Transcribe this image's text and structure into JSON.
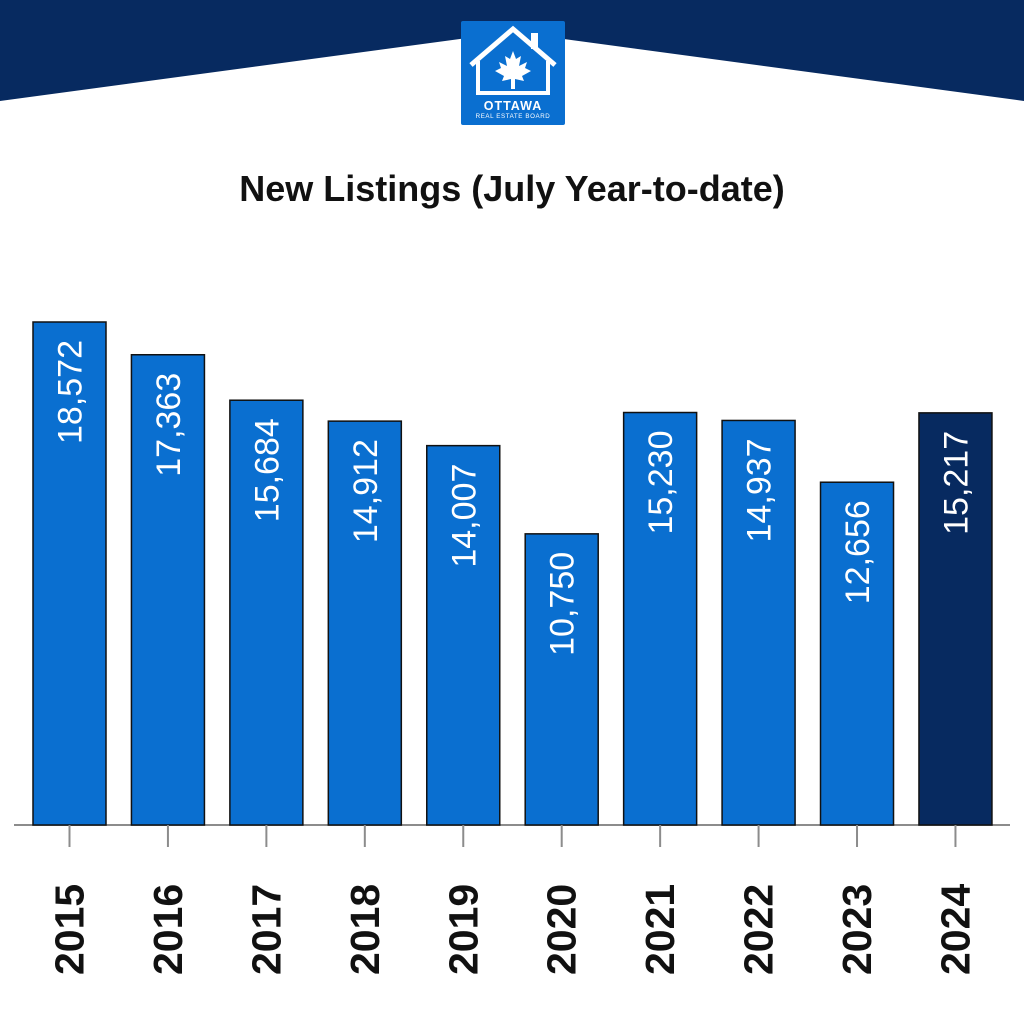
{
  "colors": {
    "banner": "#072a60",
    "bar": "#0a6fd0",
    "bar_highlight": "#072a60",
    "bar_outline": "#111111",
    "value_label": "#ffffff",
    "axis": "#8c8c8c",
    "year_label": "#111111"
  },
  "logo": {
    "icon": "house-maple-leaf-icon",
    "word": "OTTAWA",
    "subtitle": "REAL ESTATE BOARD"
  },
  "chart_data": {
    "type": "bar",
    "title": "New Listings (July Year-to-date)",
    "xlabel": "",
    "ylabel": "",
    "categories": [
      "2015",
      "2016",
      "2017",
      "2018",
      "2019",
      "2020",
      "2021",
      "2022",
      "2023",
      "2024"
    ],
    "values": [
      18572,
      17363,
      15684,
      14912,
      14007,
      10750,
      15230,
      14937,
      12656,
      15217
    ],
    "value_labels": [
      "18,572",
      "17,363",
      "15,684",
      "14,912",
      "14,007",
      "10,750",
      "15,230",
      "14,937",
      "12,656",
      "15,217"
    ],
    "highlighted_category": "2024",
    "ylim": [
      0,
      18572
    ],
    "grid": false,
    "legend": "none"
  }
}
